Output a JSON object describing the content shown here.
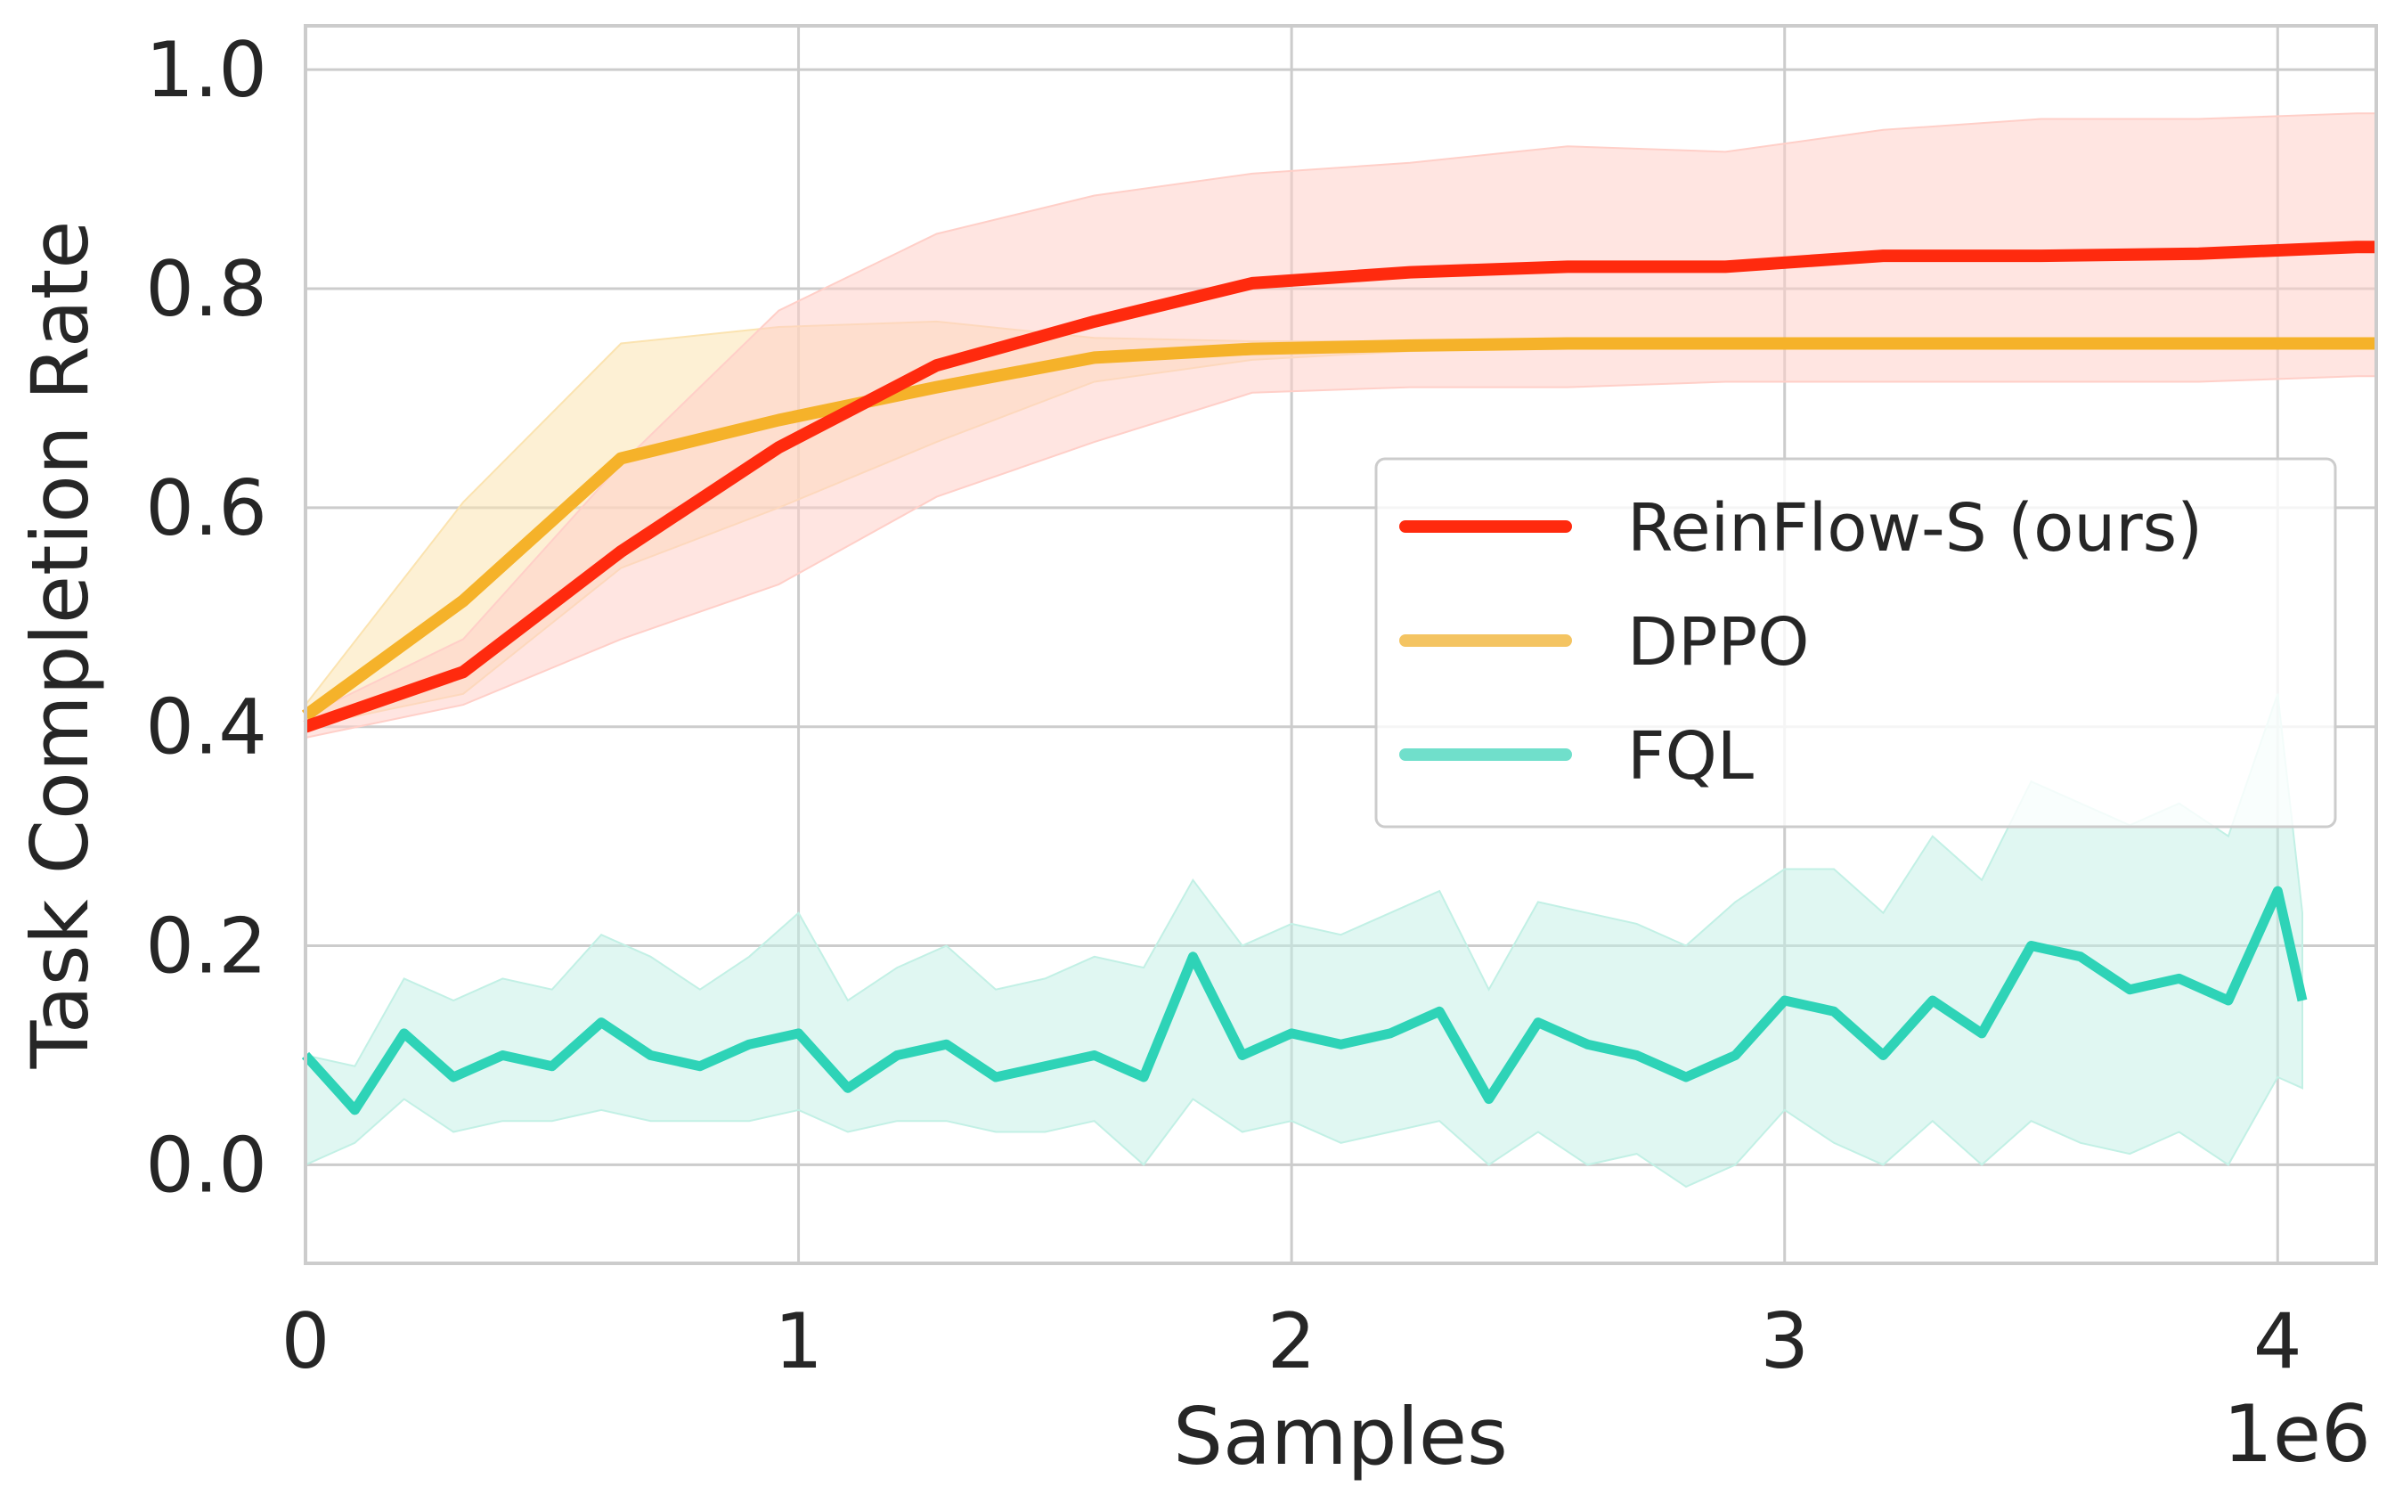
{
  "chart_data": {
    "type": "line",
    "xlabel": "Samples",
    "ylabel": "Task Completion Rate",
    "x_offset_label": "1e6",
    "xlim": [
      0,
      4.2
    ],
    "ylim": [
      -0.09,
      1.04
    ],
    "x_ticks": [
      0,
      1,
      2,
      3,
      4
    ],
    "x_tick_labels": [
      "0",
      "1",
      "2",
      "3",
      "4"
    ],
    "y_ticks": [
      0.0,
      0.2,
      0.4,
      0.6,
      0.8,
      1.0
    ],
    "y_tick_labels": [
      "0.0",
      "0.2",
      "0.4",
      "0.6",
      "0.8",
      "1.0"
    ],
    "grid": true,
    "legend_position": "center-right",
    "series": [
      {
        "name": "ReinFlow-S (ours)",
        "color": "#ff2a0e",
        "fill_color": "#ffcfc8",
        "x": [
          0,
          0.32,
          0.64,
          0.96,
          1.28,
          1.6,
          1.92,
          2.24,
          2.56,
          2.88,
          3.2,
          3.52,
          3.84,
          4.16,
          4.2
        ],
        "y": [
          0.4,
          0.45,
          0.56,
          0.655,
          0.73,
          0.77,
          0.805,
          0.815,
          0.82,
          0.82,
          0.83,
          0.83,
          0.832,
          0.838,
          0.838
        ],
        "y_low": [
          0.39,
          0.42,
          0.48,
          0.53,
          0.61,
          0.66,
          0.705,
          0.71,
          0.71,
          0.715,
          0.715,
          0.715,
          0.715,
          0.72,
          0.72
        ],
        "y_high": [
          0.41,
          0.48,
          0.64,
          0.78,
          0.85,
          0.885,
          0.905,
          0.915,
          0.93,
          0.925,
          0.945,
          0.955,
          0.955,
          0.96,
          0.96
        ]
      },
      {
        "name": "DPPO",
        "color": "#f5b22a",
        "fill_color": "#fbe3b0",
        "legend_color": "#f4c462",
        "x": [
          0,
          0.32,
          0.64,
          0.96,
          1.28,
          1.6,
          1.92,
          2.24,
          2.56,
          2.88,
          3.2,
          3.52,
          3.84,
          4.16,
          4.2
        ],
        "y": [
          0.41,
          0.515,
          0.645,
          0.68,
          0.71,
          0.737,
          0.745,
          0.748,
          0.75,
          0.75,
          0.75,
          0.75,
          0.75,
          0.75,
          0.75
        ],
        "y_low": [
          0.4,
          0.43,
          0.545,
          0.6,
          0.66,
          0.715,
          0.735,
          0.743,
          0.747,
          0.748,
          0.749,
          0.749,
          0.749,
          0.749,
          0.749
        ],
        "y_high": [
          0.42,
          0.605,
          0.75,
          0.765,
          0.77,
          0.755,
          0.752,
          0.752,
          0.752,
          0.752,
          0.751,
          0.751,
          0.751,
          0.751,
          0.751
        ]
      },
      {
        "name": "FQL",
        "color": "#2ed3b7",
        "fill_color": "#c2f0e5",
        "legend_color": "#70dfcb",
        "x": [
          0,
          0.1,
          0.2,
          0.3,
          0.4,
          0.5,
          0.6,
          0.7,
          0.8,
          0.9,
          1.0,
          1.1,
          1.2,
          1.3,
          1.4,
          1.5,
          1.6,
          1.7,
          1.8,
          1.9,
          2.0,
          2.1,
          2.2,
          2.3,
          2.4,
          2.5,
          2.6,
          2.7,
          2.8,
          2.9,
          3.0,
          3.1,
          3.2,
          3.3,
          3.4,
          3.5,
          3.6,
          3.7,
          3.8,
          3.9,
          4.0,
          4.05
        ],
        "y": [
          0.1,
          0.05,
          0.12,
          0.08,
          0.1,
          0.09,
          0.13,
          0.1,
          0.09,
          0.11,
          0.12,
          0.07,
          0.1,
          0.11,
          0.08,
          0.09,
          0.1,
          0.08,
          0.19,
          0.1,
          0.12,
          0.11,
          0.12,
          0.14,
          0.06,
          0.13,
          0.11,
          0.1,
          0.08,
          0.1,
          0.15,
          0.14,
          0.1,
          0.15,
          0.12,
          0.2,
          0.19,
          0.16,
          0.17,
          0.15,
          0.25,
          0.15
        ],
        "y_low": [
          0.0,
          0.02,
          0.06,
          0.03,
          0.04,
          0.04,
          0.05,
          0.04,
          0.04,
          0.04,
          0.05,
          0.03,
          0.04,
          0.04,
          0.03,
          0.03,
          0.04,
          0.0,
          0.06,
          0.03,
          0.04,
          0.02,
          0.03,
          0.04,
          0.0,
          0.03,
          0.0,
          0.01,
          -0.02,
          0.0,
          0.05,
          0.02,
          0.0,
          0.04,
          0.0,
          0.04,
          0.02,
          0.01,
          0.03,
          0.0,
          0.08,
          0.07
        ],
        "y_high": [
          0.1,
          0.09,
          0.17,
          0.15,
          0.17,
          0.16,
          0.21,
          0.19,
          0.16,
          0.19,
          0.23,
          0.15,
          0.18,
          0.2,
          0.16,
          0.17,
          0.19,
          0.18,
          0.26,
          0.2,
          0.22,
          0.21,
          0.23,
          0.25,
          0.16,
          0.24,
          0.23,
          0.22,
          0.2,
          0.24,
          0.27,
          0.27,
          0.23,
          0.3,
          0.26,
          0.35,
          0.33,
          0.31,
          0.33,
          0.3,
          0.43,
          0.23
        ]
      }
    ]
  }
}
